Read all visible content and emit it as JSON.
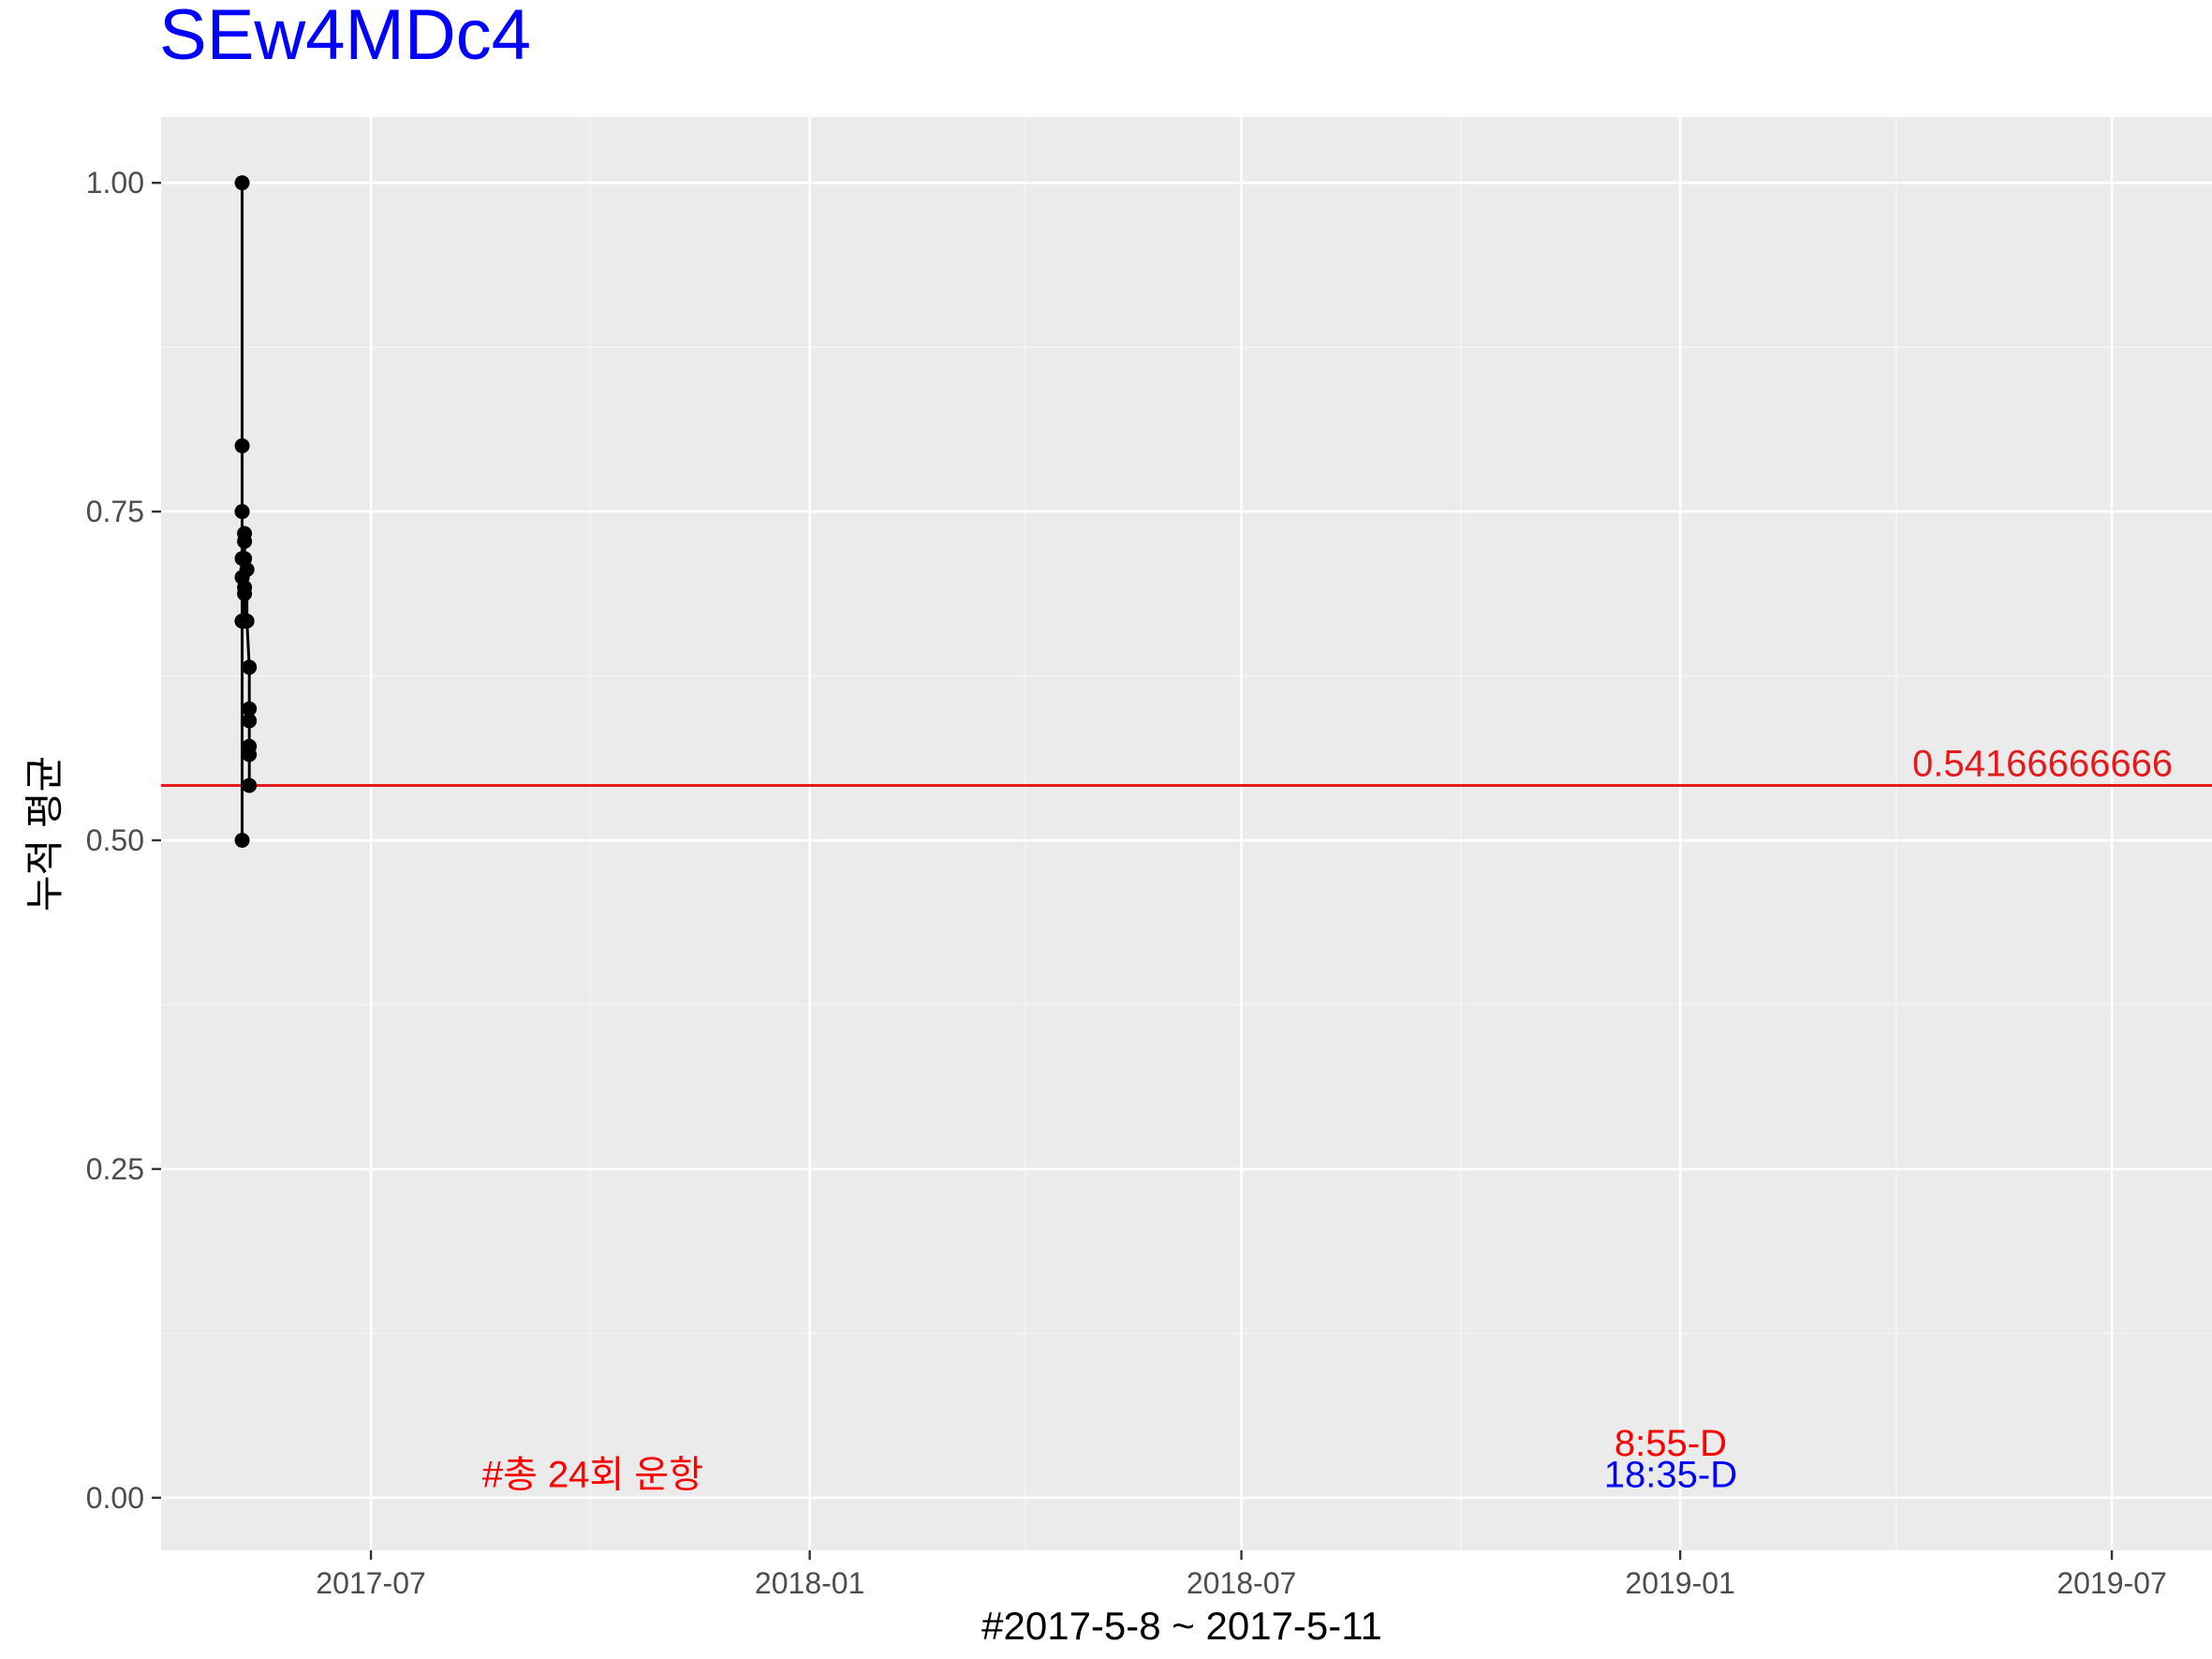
{
  "chart_data": {
    "type": "line",
    "title": "SEw4MDc4",
    "xlabel": "#2017-5-8 ~ 2017-5-11",
    "ylabel": "누적 평균",
    "ylim": [
      -0.04,
      1.05
    ],
    "xlim": [
      "2017-04-04",
      "2019-08-12"
    ],
    "x_ticks": [
      {
        "date": "2017-07-01",
        "label": "2017-07"
      },
      {
        "date": "2018-01-01",
        "label": "2018-01"
      },
      {
        "date": "2018-07-01",
        "label": "2018-07"
      },
      {
        "date": "2019-01-01",
        "label": "2019-01"
      },
      {
        "date": "2019-07-01",
        "label": "2019-07"
      }
    ],
    "y_ticks": [
      {
        "value": 0.0,
        "label": "0.00"
      },
      {
        "value": 0.25,
        "label": "0.25"
      },
      {
        "value": 0.5,
        "label": "0.50"
      },
      {
        "value": 0.75,
        "label": "0.75"
      },
      {
        "value": 1.0,
        "label": "1.00"
      }
    ],
    "grid": true,
    "series": [
      {
        "color": "#000000",
        "points": [
          {
            "x": "2017-05-08",
            "y": 1.0
          },
          {
            "x": "2017-05-08",
            "y": 0.5
          },
          {
            "x": "2017-05-08",
            "y": 0.6667
          },
          {
            "x": "2017-05-08",
            "y": 0.75
          },
          {
            "x": "2017-05-08",
            "y": 0.8
          },
          {
            "x": "2017-05-08",
            "y": 0.6667
          },
          {
            "x": "2017-05-08",
            "y": 0.7143
          },
          {
            "x": "2017-05-08",
            "y": 0.75
          },
          {
            "x": "2017-05-08",
            "y": 0.6667
          },
          {
            "x": "2017-05-08",
            "y": 0.7
          },
          {
            "x": "2017-05-09",
            "y": 0.7273
          },
          {
            "x": "2017-05-09",
            "y": 0.6667
          },
          {
            "x": "2017-05-09",
            "y": 0.6923
          },
          {
            "x": "2017-05-09",
            "y": 0.7143
          },
          {
            "x": "2017-05-09",
            "y": 0.7333
          },
          {
            "x": "2017-05-09",
            "y": 0.6875
          },
          {
            "x": "2017-05-10",
            "y": 0.7059
          },
          {
            "x": "2017-05-10",
            "y": 0.6667
          },
          {
            "x": "2017-05-11",
            "y": 0.6316
          },
          {
            "x": "2017-05-11",
            "y": 0.6
          },
          {
            "x": "2017-05-11",
            "y": 0.5714
          },
          {
            "x": "2017-05-11",
            "y": 0.5909
          },
          {
            "x": "2017-05-11",
            "y": 0.5652
          },
          {
            "x": "2017-05-11",
            "y": 0.5417
          }
        ]
      }
    ],
    "hline": {
      "y": 0.5416666667,
      "color": "#e41a1c",
      "label": "0.54166666666"
    },
    "annotations": [
      {
        "text": "#총 24회 운항",
        "x": "2017-10-02",
        "y": 0.018,
        "color": "#ff0000"
      },
      {
        "text": "8:55-D",
        "x": "2018-12-28",
        "y": 0.042,
        "color": "#ff0000"
      },
      {
        "text": "18:35-D",
        "x": "2018-12-28",
        "y": 0.018,
        "color": "#0000ff"
      }
    ]
  },
  "colors": {
    "panel_background": "#ebebeb",
    "grid_major": "#ffffff",
    "grid_minor": "#f5f5f5",
    "title": "#0000ff"
  }
}
